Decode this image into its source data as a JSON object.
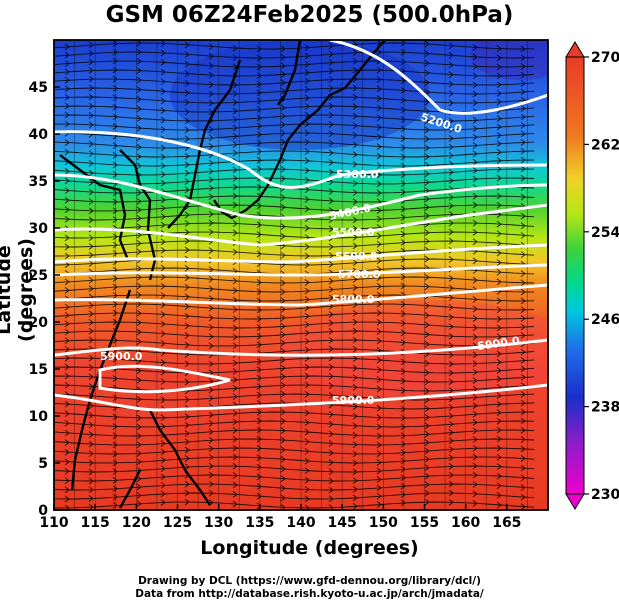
{
  "title": "GSM 06Z24Feb2025 (500.0hPa)",
  "axes": {
    "xlabel": "Longitude (degrees)",
    "ylabel": "Latitude  (degrees)",
    "xticks": [
      "110",
      "115",
      "120",
      "125",
      "130",
      "135",
      "140",
      "145",
      "150",
      "155",
      "160",
      "165"
    ],
    "yticks": [
      "0",
      "5",
      "10",
      "15",
      "20",
      "25",
      "30",
      "35",
      "40",
      "45"
    ],
    "xlim": [
      110,
      170
    ],
    "ylim": [
      0,
      50
    ]
  },
  "colorbar": {
    "ticks": [
      "230",
      "238",
      "246",
      "254",
      "262",
      "270"
    ],
    "range": [
      230,
      270
    ],
    "colors": [
      "#ee00cc",
      "#7a1ec8",
      "#1b2fc8",
      "#1e6ee8",
      "#00c8dc",
      "#00d890",
      "#3cd23c",
      "#b4e614",
      "#f0d228",
      "#f07820",
      "#e83c28",
      "#f03c3c"
    ]
  },
  "contours": {
    "labels": [
      "5200.0",
      "5300.0",
      "5400.0",
      "5500.0",
      "5600.0",
      "5700.0",
      "5800.0",
      "5900.0",
      "5900.0",
      "5900.0"
    ],
    "color": "#ffffff"
  },
  "credits": {
    "line1": "Drawing by DCL (https://www.gfd-dennou.org/library/dcl/)",
    "line2": "Data from http://database.rish.kyoto-u.ac.jp/arch/jmadata/"
  }
}
